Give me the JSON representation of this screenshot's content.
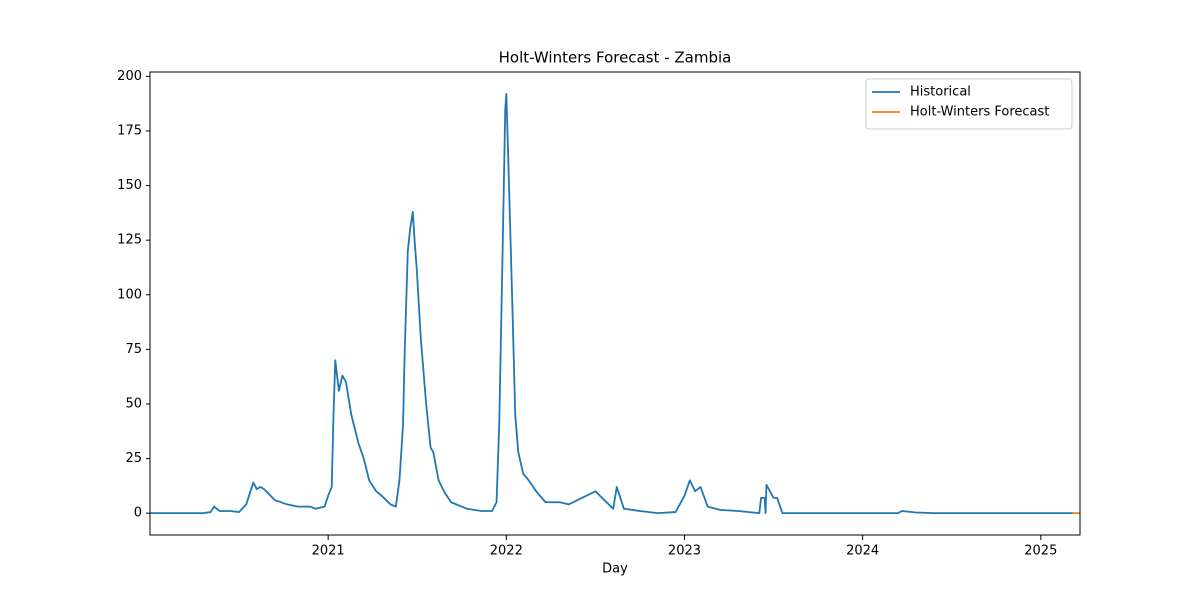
{
  "chart_data": {
    "type": "line",
    "title": "Holt-Winters Forecast - Zambia",
    "xlabel": "Day",
    "series": [
      {
        "name": "Historical",
        "color": "#1f77b4",
        "x": [
          2020.0,
          2020.3,
          2020.34,
          2020.36,
          2020.39,
          2020.45,
          2020.5,
          2020.54,
          2020.58,
          2020.6,
          2020.62,
          2020.64,
          2020.7,
          2020.77,
          2020.83,
          2020.9,
          2020.93,
          2020.98,
          2021.0,
          2021.02,
          2021.03,
          2021.04,
          2021.06,
          2021.08,
          2021.1,
          2021.13,
          2021.17,
          2021.2,
          2021.23,
          2021.27,
          2021.3,
          2021.35,
          2021.38,
          2021.4,
          2021.42,
          2021.43,
          2021.447,
          2021.46,
          2021.475,
          2021.485,
          2021.497,
          2021.52,
          2021.55,
          2021.575,
          2021.59,
          2021.62,
          2021.65,
          2021.69,
          2021.78,
          2021.86,
          2021.92,
          2021.945,
          2021.96,
          2021.978,
          2021.994,
          2022.0,
          2022.01,
          2022.034,
          2022.05,
          2022.067,
          2022.095,
          2022.117,
          2022.168,
          2022.22,
          2022.3,
          2022.35,
          2022.45,
          2022.5,
          2022.6,
          2022.62,
          2022.66,
          2022.75,
          2022.85,
          2022.95,
          2023.0,
          2023.03,
          2023.06,
          2023.09,
          2023.13,
          2023.2,
          2023.3,
          2023.42,
          2023.43,
          2023.45,
          2023.455,
          2023.46,
          2023.5,
          2023.52,
          2023.55,
          2024.2,
          2024.22,
          2024.3,
          2024.4,
          2025.18
        ],
        "values": [
          0,
          0,
          0.5,
          3,
          1,
          1,
          0.5,
          4,
          14,
          11,
          12,
          11,
          6,
          4,
          3,
          3,
          2,
          3,
          8,
          12,
          45,
          70,
          56,
          63,
          60,
          45,
          32,
          25,
          15,
          10,
          8,
          4,
          3,
          15,
          40,
          75,
          120,
          130,
          138,
          125,
          112,
          80,
          50,
          30,
          28,
          15,
          10,
          5,
          2,
          1,
          1,
          5,
          40,
          115,
          185,
          192,
          165,
          95,
          45,
          28,
          18,
          16,
          10,
          5,
          5,
          4,
          8,
          10,
          2,
          12,
          2,
          1,
          0,
          0.5,
          8,
          15,
          10,
          12,
          3,
          1.5,
          1,
          0,
          7,
          7,
          0,
          13,
          7,
          7,
          0,
          0,
          1,
          0.3,
          0,
          0
        ]
      },
      {
        "name": "Holt-Winters Forecast",
        "color": "#ff7f0e",
        "x": [
          2025.18,
          2025.22
        ],
        "values": [
          0,
          0
        ]
      }
    ],
    "xlim": [
      2020.0,
      2025.22
    ],
    "xticks": [
      2021,
      2022,
      2023,
      2024,
      2025
    ],
    "ylim": [
      -10,
      202
    ],
    "yticks": [
      0,
      25,
      50,
      75,
      100,
      125,
      150,
      175,
      200
    ],
    "legend": "upper right",
    "grid": false
  }
}
